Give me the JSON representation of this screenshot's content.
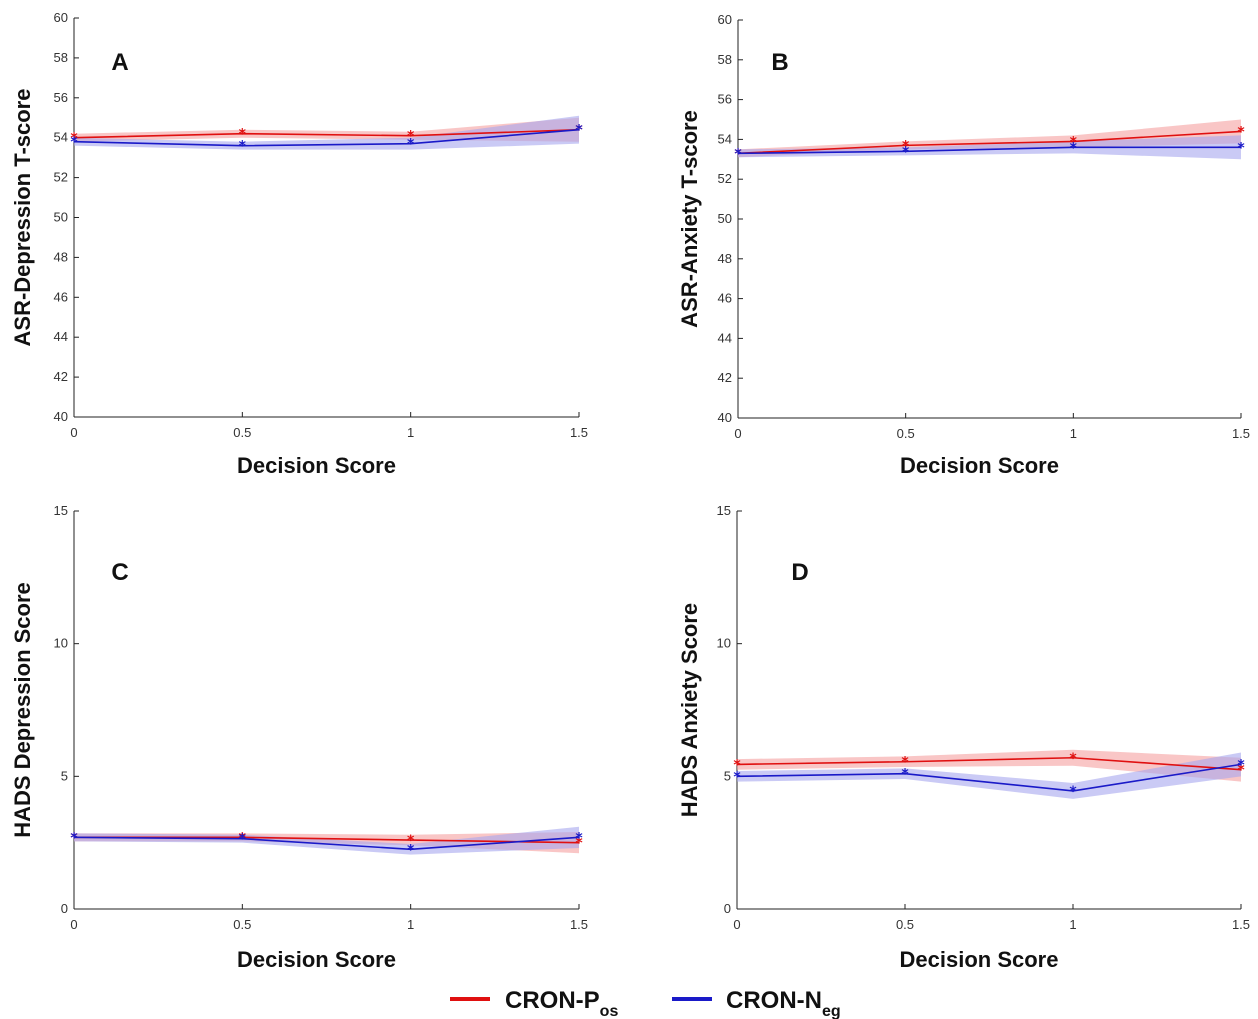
{
  "chart_data": [
    {
      "type": "line",
      "panel": "A",
      "xlabel": "Decision Score",
      "ylabel": "ASR-Depression T-score",
      "x": [
        0,
        0.5,
        1,
        1.5
      ],
      "xticks": [
        "0",
        "0.5",
        "1",
        "1.5"
      ],
      "ylim": [
        40,
        60
      ],
      "yticks": [
        40,
        42,
        44,
        46,
        48,
        50,
        52,
        54,
        56,
        58,
        60
      ],
      "series": [
        {
          "name": "CRON-Pos",
          "values": [
            54.0,
            54.2,
            54.1,
            54.4
          ],
          "band": [
            [
              53.8,
              54.2
            ],
            [
              54.0,
              54.4
            ],
            [
              53.9,
              54.3
            ],
            [
              53.8,
              55.0
            ]
          ]
        },
        {
          "name": "CRON-Neg",
          "values": [
            53.8,
            53.6,
            53.7,
            54.4
          ],
          "band": [
            [
              53.6,
              54.0
            ],
            [
              53.4,
              53.8
            ],
            [
              53.4,
              54.0
            ],
            [
              53.7,
              55.1
            ]
          ]
        }
      ]
    },
    {
      "type": "line",
      "panel": "B",
      "xlabel": "Decision Score",
      "ylabel": "ASR-Anxiety T-score",
      "x": [
        0,
        0.5,
        1,
        1.5
      ],
      "xticks": [
        "0",
        "0.5",
        "1",
        "1.5"
      ],
      "ylim": [
        40,
        60
      ],
      "yticks": [
        40,
        42,
        44,
        46,
        48,
        50,
        52,
        54,
        56,
        58,
        60
      ],
      "series": [
        {
          "name": "CRON-Pos",
          "values": [
            53.3,
            53.7,
            53.9,
            54.4
          ],
          "band": [
            [
              53.1,
              53.5
            ],
            [
              53.5,
              53.9
            ],
            [
              53.6,
              54.2
            ],
            [
              53.8,
              55.0
            ]
          ]
        },
        {
          "name": "CRON-Neg",
          "values": [
            53.3,
            53.4,
            53.6,
            53.6
          ],
          "band": [
            [
              53.1,
              53.5
            ],
            [
              53.2,
              53.6
            ],
            [
              53.3,
              53.9
            ],
            [
              53.0,
              54.2
            ]
          ]
        }
      ]
    },
    {
      "type": "line",
      "panel": "C",
      "xlabel": "Decision Score",
      "ylabel": "HADS Depression Score",
      "x": [
        0,
        0.5,
        1,
        1.5
      ],
      "xticks": [
        "0",
        "0.5",
        "1",
        "1.5"
      ],
      "ylim": [
        0,
        15
      ],
      "yticks": [
        0,
        5,
        10,
        15
      ],
      "series": [
        {
          "name": "CRON-Pos",
          "values": [
            2.7,
            2.7,
            2.6,
            2.5
          ],
          "band": [
            [
              2.55,
              2.85
            ],
            [
              2.55,
              2.85
            ],
            [
              2.4,
              2.8
            ],
            [
              2.1,
              2.9
            ]
          ]
        },
        {
          "name": "CRON-Neg",
          "values": [
            2.7,
            2.65,
            2.25,
            2.7
          ],
          "band": [
            [
              2.55,
              2.85
            ],
            [
              2.5,
              2.8
            ],
            [
              2.05,
              2.45
            ],
            [
              2.3,
              3.1
            ]
          ]
        }
      ]
    },
    {
      "type": "line",
      "panel": "D",
      "xlabel": "Decision Score",
      "ylabel": "HADS Anxiety Score",
      "x": [
        0,
        0.5,
        1,
        1.5
      ],
      "xticks": [
        "0",
        "0.5",
        "1",
        "1.5"
      ],
      "ylim": [
        0,
        15
      ],
      "yticks": [
        0,
        5,
        10,
        15
      ],
      "series": [
        {
          "name": "CRON-Pos",
          "values": [
            5.45,
            5.55,
            5.7,
            5.25
          ],
          "band": [
            [
              5.25,
              5.65
            ],
            [
              5.35,
              5.75
            ],
            [
              5.4,
              6.0
            ],
            [
              4.8,
              5.7
            ]
          ]
        },
        {
          "name": "CRON-Neg",
          "values": [
            5.0,
            5.1,
            4.45,
            5.45
          ],
          "band": [
            [
              4.8,
              5.2
            ],
            [
              4.9,
              5.3
            ],
            [
              4.15,
              4.75
            ],
            [
              5.0,
              5.9
            ]
          ]
        }
      ]
    }
  ],
  "legend": {
    "items": [
      {
        "main": "CRON-P",
        "sub": "os",
        "color": "#e01010"
      },
      {
        "main": "CRON-N",
        "sub": "eg",
        "color": "#1a1ac8"
      }
    ]
  },
  "colors": {
    "pos": "#e01010",
    "neg": "#1a1ac8",
    "pos_band": "#f5a0a0",
    "neg_band": "#a6a6ee"
  }
}
